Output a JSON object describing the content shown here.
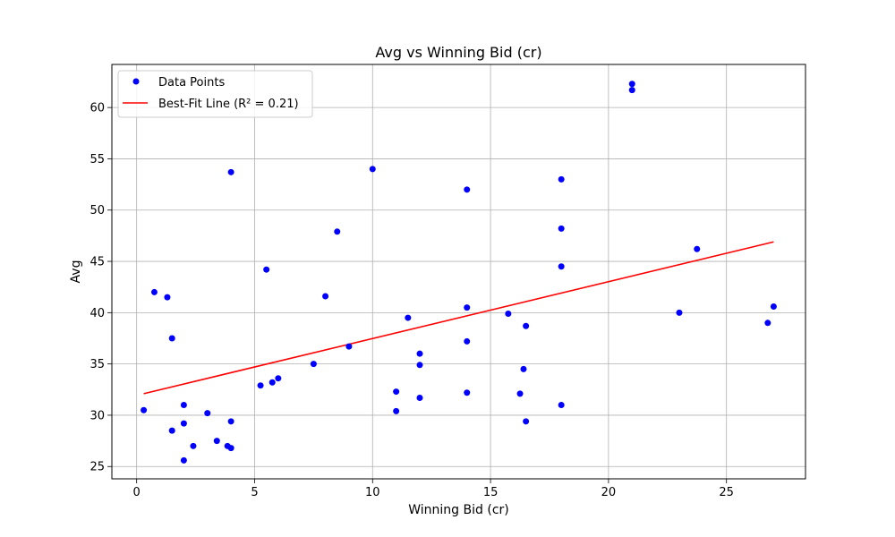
{
  "chart_data": {
    "type": "scatter",
    "title": "Avg vs Winning Bid (cr)",
    "xlabel": "Winning Bid (cr)",
    "ylabel": "Avg",
    "xlim": [
      -1.05,
      28.35
    ],
    "ylim": [
      23.8,
      64.2
    ],
    "xticks": [
      0,
      5,
      10,
      15,
      20,
      25
    ],
    "yticks": [
      25,
      30,
      35,
      40,
      45,
      50,
      55,
      60
    ],
    "grid": true,
    "legend_position": "upper-left",
    "series": [
      {
        "name": "Data Points",
        "kind": "scatter",
        "color": "#0000ff",
        "points": [
          [
            0.3,
            30.5
          ],
          [
            0.75,
            42.0
          ],
          [
            1.3,
            41.5
          ],
          [
            1.5,
            37.5
          ],
          [
            1.5,
            28.5
          ],
          [
            2.0,
            31.0
          ],
          [
            2.0,
            29.2
          ],
          [
            2.0,
            25.6
          ],
          [
            2.4,
            27.0
          ],
          [
            3.0,
            30.2
          ],
          [
            3.4,
            27.5
          ],
          [
            3.85,
            27.0
          ],
          [
            4.0,
            26.8
          ],
          [
            4.0,
            29.4
          ],
          [
            4.0,
            53.7
          ],
          [
            5.25,
            32.9
          ],
          [
            5.5,
            44.2
          ],
          [
            5.75,
            33.2
          ],
          [
            6.0,
            33.6
          ],
          [
            7.5,
            35.0
          ],
          [
            8.0,
            41.6
          ],
          [
            8.5,
            47.9
          ],
          [
            9.0,
            36.7
          ],
          [
            10.0,
            54.0
          ],
          [
            11.0,
            32.3
          ],
          [
            11.0,
            30.4
          ],
          [
            11.5,
            39.5
          ],
          [
            12.0,
            36.0
          ],
          [
            12.0,
            34.9
          ],
          [
            12.0,
            31.7
          ],
          [
            14.0,
            52.0
          ],
          [
            14.0,
            40.5
          ],
          [
            14.0,
            37.2
          ],
          [
            14.0,
            32.2
          ],
          [
            15.75,
            39.9
          ],
          [
            16.25,
            32.1
          ],
          [
            16.4,
            34.5
          ],
          [
            16.5,
            38.7
          ],
          [
            16.5,
            29.4
          ],
          [
            18.0,
            53.0
          ],
          [
            18.0,
            48.2
          ],
          [
            18.0,
            44.5
          ],
          [
            18.0,
            31.0
          ],
          [
            21.0,
            62.3
          ],
          [
            21.0,
            61.7
          ],
          [
            23.0,
            40.0
          ],
          [
            23.75,
            46.2
          ],
          [
            26.75,
            39.0
          ],
          [
            27.0,
            40.6
          ]
        ]
      },
      {
        "name": "Best-Fit Line (R² = 0.21)",
        "kind": "line",
        "color": "#ff0000",
        "points": [
          [
            0.3,
            32.1
          ],
          [
            27.0,
            46.9
          ]
        ]
      }
    ]
  }
}
